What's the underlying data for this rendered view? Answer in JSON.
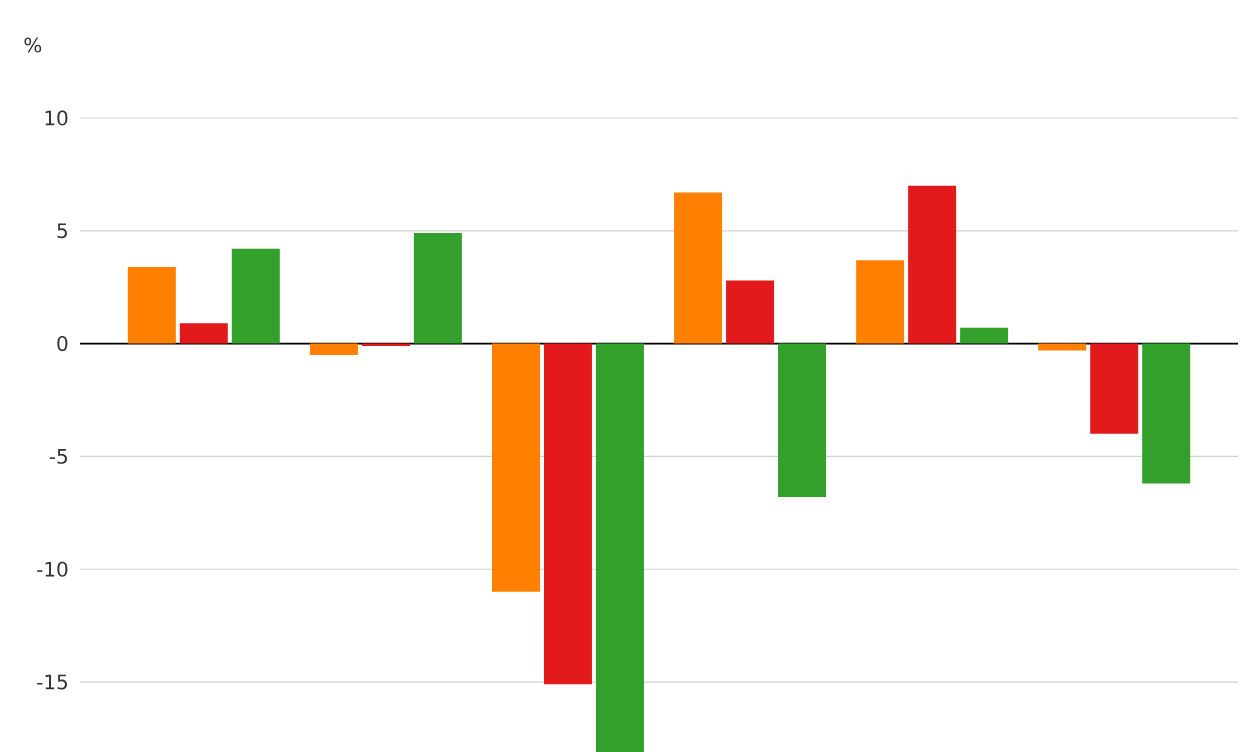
{
  "chart_data": {
    "type": "bar",
    "ylabel": "%",
    "categories": [
      null,
      null,
      null,
      null,
      null,
      null
    ],
    "series": [
      {
        "color": "#ff7f00",
        "values": [
          3.4,
          -0.5,
          -11.0,
          6.7,
          3.7,
          -0.3
        ]
      },
      {
        "color": "#e31a1c",
        "values": [
          0.9,
          -0.1,
          -15.1,
          2.8,
          7.0,
          -4.0
        ]
      },
      {
        "color": "#33a02c",
        "values": [
          4.2,
          4.9,
          -18.1,
          -6.8,
          0.7,
          -6.2
        ]
      }
    ],
    "ylim": [
      -18.1,
      10
    ],
    "yticks": [
      -15,
      -10,
      -5,
      0,
      5,
      10
    ],
    "grid": "y"
  }
}
